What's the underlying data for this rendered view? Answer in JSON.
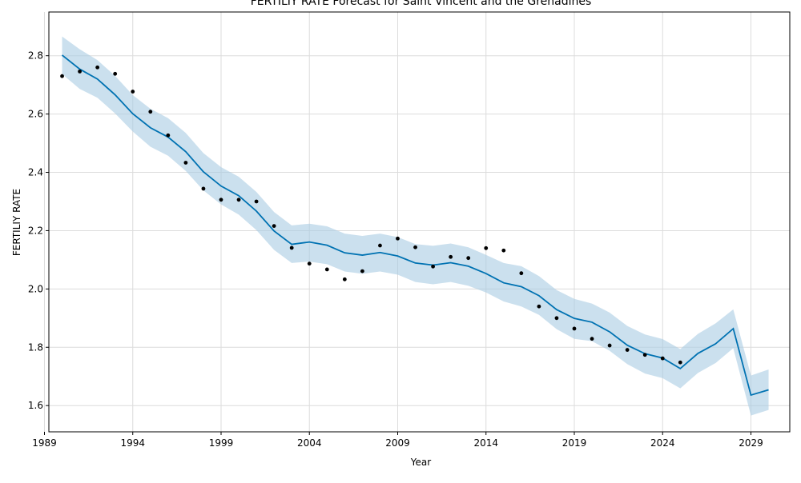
{
  "chart_data": {
    "type": "line",
    "title": "FERTILIY RATE Forecast for Saint Vincent and the Grenadines",
    "xlabel": "Year",
    "ylabel": "FERTILIY RATE",
    "xlim": [
      1989.25,
      2031.2
    ],
    "ylim": [
      1.51,
      2.95
    ],
    "x_ticks": [
      1989,
      1994,
      1999,
      2004,
      2009,
      2014,
      2019,
      2024,
      2029
    ],
    "y_ticks": [
      1.6,
      1.8,
      2.0,
      2.2,
      2.4,
      2.6,
      2.8
    ],
    "y_tick_labels": [
      "1.6",
      "1.8",
      "2.0",
      "2.2",
      "2.4",
      "2.6",
      "2.8"
    ],
    "grid": true,
    "colors": {
      "forecast": "#0072b2",
      "band": "#a9cce3",
      "observed": "#000000"
    },
    "observed": {
      "x": [
        1990,
        1991,
        1992,
        1993,
        1994,
        1995,
        1996,
        1997,
        1998,
        1999,
        2000,
        2001,
        2002,
        2003,
        2004,
        2005,
        2006,
        2007,
        2008,
        2009,
        2010,
        2011,
        2012,
        2013,
        2014,
        2015,
        2016,
        2017,
        2018,
        2019,
        2020,
        2021,
        2022,
        2023,
        2024,
        2025
      ],
      "y": [
        2.73,
        2.746,
        2.76,
        2.738,
        2.677,
        2.608,
        2.527,
        2.433,
        2.344,
        2.306,
        2.306,
        2.3,
        2.216,
        2.141,
        2.087,
        2.067,
        2.033,
        2.061,
        2.149,
        2.173,
        2.143,
        2.077,
        2.11,
        2.106,
        2.14,
        2.132,
        2.054,
        1.94,
        1.9,
        1.864,
        1.829,
        1.806,
        1.791,
        1.774,
        1.762,
        1.748
      ]
    },
    "forecast": {
      "x": [
        1990,
        1991,
        1992,
        1993,
        1994,
        1995,
        1996,
        1997,
        1998,
        1999,
        2000,
        2001,
        2002,
        2003,
        2004,
        2005,
        2006,
        2007,
        2008,
        2009,
        2010,
        2011,
        2012,
        2013,
        2014,
        2015,
        2016,
        2017,
        2018,
        2019,
        2020,
        2021,
        2022,
        2023,
        2024,
        2025,
        2026,
        2027,
        2028,
        2029,
        2030
      ],
      "yhat": [
        2.802,
        2.754,
        2.72,
        2.666,
        2.601,
        2.553,
        2.521,
        2.471,
        2.402,
        2.353,
        2.32,
        2.267,
        2.199,
        2.153,
        2.161,
        2.15,
        2.124,
        2.116,
        2.125,
        2.113,
        2.089,
        2.082,
        2.09,
        2.078,
        2.053,
        2.021,
        2.008,
        1.977,
        1.929,
        1.899,
        1.886,
        1.853,
        1.807,
        1.778,
        1.763,
        1.727,
        1.779,
        1.812,
        1.864,
        1.636,
        1.654
      ],
      "lower": [
        2.737,
        2.686,
        2.656,
        2.602,
        2.54,
        2.488,
        2.457,
        2.405,
        2.338,
        2.29,
        2.255,
        2.202,
        2.134,
        2.089,
        2.094,
        2.085,
        2.06,
        2.052,
        2.06,
        2.049,
        2.024,
        2.016,
        2.024,
        2.011,
        1.988,
        1.957,
        1.94,
        1.911,
        1.862,
        1.829,
        1.821,
        1.788,
        1.742,
        1.71,
        1.694,
        1.659,
        1.712,
        1.746,
        1.797,
        1.566,
        1.585
      ],
      "upper": [
        2.866,
        2.822,
        2.785,
        2.731,
        2.665,
        2.618,
        2.586,
        2.535,
        2.466,
        2.418,
        2.385,
        2.333,
        2.264,
        2.218,
        2.224,
        2.215,
        2.19,
        2.182,
        2.19,
        2.178,
        2.154,
        2.148,
        2.156,
        2.143,
        2.117,
        2.089,
        2.078,
        2.044,
        1.996,
        1.966,
        1.95,
        1.919,
        1.873,
        1.844,
        1.828,
        1.794,
        1.846,
        1.882,
        1.93,
        1.703,
        1.724
      ]
    }
  }
}
